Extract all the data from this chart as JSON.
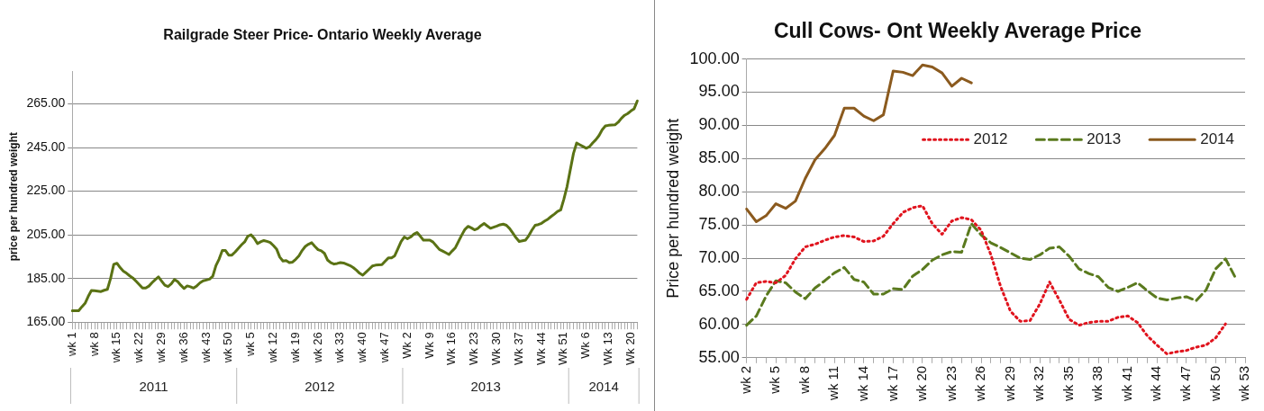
{
  "chart_data": [
    {
      "type": "line",
      "title": "Railgrade Steer Price- Ontario Weekly Average",
      "ylabel": "price per hundred weight",
      "categories": [
        "wk 1",
        null,
        null,
        null,
        null,
        null,
        null,
        "wk 8",
        null,
        null,
        null,
        null,
        null,
        null,
        "wk 15",
        null,
        null,
        null,
        null,
        null,
        null,
        "wk 22",
        null,
        null,
        null,
        null,
        null,
        null,
        "wk 29",
        null,
        null,
        null,
        null,
        null,
        null,
        "wk 36",
        null,
        null,
        null,
        null,
        null,
        null,
        "wk 43",
        null,
        null,
        null,
        null,
        null,
        null,
        "wk 50",
        null,
        null,
        null,
        null,
        null,
        null,
        "wk 5",
        null,
        null,
        null,
        null,
        null,
        null,
        "wk 12",
        null,
        null,
        null,
        null,
        null,
        null,
        "wk 19",
        null,
        null,
        null,
        null,
        null,
        null,
        "wk 26",
        null,
        null,
        null,
        null,
        null,
        null,
        "wk 33",
        null,
        null,
        null,
        null,
        null,
        null,
        "wk 40",
        null,
        null,
        null,
        null,
        null,
        null,
        "wk 47",
        null,
        null,
        null,
        null,
        null,
        null,
        "Wk 2",
        null,
        null,
        null,
        null,
        null,
        null,
        "Wk 9",
        null,
        null,
        null,
        null,
        null,
        null,
        "Wk 16",
        null,
        null,
        null,
        null,
        null,
        null,
        "Wk 23",
        null,
        null,
        null,
        null,
        null,
        null,
        "Wk 30",
        null,
        null,
        null,
        null,
        null,
        null,
        "Wk 37",
        null,
        null,
        null,
        null,
        null,
        null,
        "Wk 44",
        null,
        null,
        null,
        null,
        null,
        null,
        "Wk 51",
        null,
        null,
        null,
        null,
        null,
        null,
        "Wk 6",
        null,
        null,
        null,
        null,
        null,
        null,
        "Wk 13",
        null,
        null,
        null,
        null,
        null,
        null,
        "Wk 20",
        null,
        null
      ],
      "values": [
        170.2,
        170.2,
        170.2,
        172,
        173.6,
        176.8,
        179.5,
        179.4,
        179.2,
        179,
        179.6,
        180,
        185,
        191.5,
        192,
        190,
        188.4,
        187.4,
        186.2,
        185.2,
        183.7,
        182.2,
        180.6,
        180.6,
        181.5,
        183.1,
        184.5,
        185.7,
        183.8,
        181.9,
        181.3,
        182.5,
        184.5,
        183.6,
        181.9,
        180.4,
        181.6,
        181.2,
        180.6,
        181.6,
        183,
        183.9,
        184.3,
        184.7,
        186,
        190.9,
        193.9,
        197.8,
        197.8,
        195.7,
        195.7,
        197.1,
        198.8,
        200.4,
        201.8,
        204.4,
        205,
        203.4,
        201,
        201.8,
        202.4,
        202,
        201.5,
        200.1,
        198.5,
        194.8,
        193,
        193.2,
        192.3,
        192.5,
        193.8,
        195.4,
        197.8,
        199.7,
        200.7,
        201.4,
        199.7,
        198.2,
        197.7,
        196.5,
        193.4,
        192.2,
        191.6,
        191.9,
        192.3,
        192.1,
        191.5,
        190.9,
        190,
        188.8,
        187.4,
        186.5,
        187.9,
        189.3,
        190.7,
        191.1,
        191.2,
        191.3,
        192.9,
        194.4,
        194.4,
        195.4,
        198.6,
        201.9,
        204,
        203.2,
        204,
        205.3,
        206.1,
        204.4,
        202.6,
        202.6,
        202.6,
        201.7,
        200,
        198.3,
        197.6,
        196.8,
        196,
        197.6,
        199.1,
        202,
        204.9,
        207.5,
        208.9,
        208.2,
        207.3,
        207.9,
        209.2,
        210.2,
        209.1,
        208,
        208.5,
        209,
        209.6,
        209.9,
        209.4,
        207.9,
        205.8,
        203.7,
        202,
        202.3,
        202.6,
        204.6,
        207.2,
        209.4,
        209.7,
        210.3,
        211.3,
        212.2,
        213.4,
        214.5,
        215.7,
        216.4,
        221.4,
        227.2,
        234.8,
        242.3,
        247.1,
        246.3,
        245.5,
        244.7,
        245.4,
        247.1,
        248.6,
        250.5,
        253.2,
        254.9,
        255.2,
        255.3,
        255.4,
        256.6,
        258.4,
        259.8,
        260.6,
        261.8,
        262.8,
        266.4
      ],
      "color": "#5a7214",
      "ylim": [
        165,
        280
      ],
      "yticks": [
        {
          "value": 165,
          "label": "165.00"
        },
        {
          "value": 185,
          "label": "185.00"
        },
        {
          "value": 205,
          "label": "205.00"
        },
        {
          "value": 225,
          "label": "225.00"
        },
        {
          "value": 245,
          "label": "245.00"
        },
        {
          "value": 265,
          "label": "265.00"
        }
      ],
      "grid": "y",
      "annotations": [
        "2011",
        "2012",
        "2013",
        "2014"
      ]
    },
    {
      "type": "line",
      "title": "Cull Cows- Ont Weekly Average Price",
      "ylabel": "Price per hundred weight",
      "categories": [
        "wk 2",
        null,
        null,
        "wk 5",
        null,
        null,
        "wk 8",
        null,
        null,
        "wk 11",
        null,
        null,
        "wk 14",
        null,
        null,
        "wk 17",
        null,
        null,
        "wk 20",
        null,
        null,
        "wk 23",
        null,
        null,
        "wk 26",
        null,
        null,
        "wk 29",
        null,
        null,
        "wk 32",
        null,
        null,
        "wk 35",
        null,
        null,
        "wk 38",
        null,
        null,
        "wk 41",
        null,
        null,
        "wk 44",
        null,
        null,
        "wk 47",
        null,
        null,
        "wk 50",
        null,
        null,
        "wk 53"
      ],
      "series": [
        {
          "name": "2012",
          "color": "#e0141e",
          "line_style": "dotted",
          "values": [
            63.8,
            66.3,
            66.5,
            66.3,
            67.4,
            69.9,
            71.7,
            72.1,
            72.7,
            73.2,
            73.4,
            73.2,
            72.5,
            72.6,
            73.3,
            75.2,
            76.9,
            77.6,
            77.9,
            75.2,
            73.6,
            75.6,
            76.1,
            75.8,
            74.2,
            70.5,
            65.7,
            62,
            60.5,
            60.6,
            63.1,
            66.4,
            63.7,
            60.8,
            59.9,
            60.3,
            60.5,
            60.5,
            61.1,
            61.3,
            60.3,
            58.3,
            56.9,
            55.6,
            55.9,
            56.1,
            56.6,
            56.9,
            58,
            60.1,
            null,
            null
          ]
        },
        {
          "name": "2013",
          "color": "#5a7a1e",
          "line_style": "dashed",
          "values": [
            59.9,
            61.3,
            64.3,
            66.6,
            66.3,
            64.9,
            63.9,
            65.5,
            66.6,
            67.8,
            68.6,
            66.8,
            66.4,
            64.6,
            64.6,
            65.4,
            65.3,
            67.3,
            68.3,
            69.7,
            70.5,
            71,
            70.9,
            75.2,
            73.5,
            72.3,
            71.6,
            70.8,
            70,
            69.8,
            70.5,
            71.5,
            71.7,
            70.3,
            68.4,
            67.7,
            67.2,
            65.6,
            65,
            65.6,
            66.3,
            65.1,
            64,
            63.7,
            64,
            64.2,
            63.6,
            65.2,
            68.4,
            69.9,
            67.1,
            null
          ]
        },
        {
          "name": "2014",
          "color": "#8b5a1e",
          "line_style": "solid",
          "values": [
            77.4,
            75.5,
            76.4,
            78.2,
            77.5,
            78.6,
            82,
            84.8,
            86.5,
            88.5,
            92.6,
            92.6,
            91.4,
            90.7,
            91.6,
            98.2,
            98,
            97.5,
            99.1,
            98.8,
            97.9,
            95.9,
            97.1,
            96.4,
            null,
            null,
            null,
            null,
            null,
            null,
            null,
            null,
            null,
            null,
            null,
            null,
            null,
            null,
            null,
            null,
            null,
            null,
            null,
            null,
            null,
            null,
            null,
            null,
            null,
            null,
            null,
            null
          ]
        }
      ],
      "ylim": [
        55,
        100
      ],
      "yticks": [
        {
          "value": 55,
          "label": "55.00"
        },
        {
          "value": 60,
          "label": "60.00"
        },
        {
          "value": 65,
          "label": "65.00"
        },
        {
          "value": 70,
          "label": "70.00"
        },
        {
          "value": 75,
          "label": "75.00"
        },
        {
          "value": 80,
          "label": "80.00"
        },
        {
          "value": 85,
          "label": "85.00"
        },
        {
          "value": 90,
          "label": "90.00"
        },
        {
          "value": 95,
          "label": "95.00"
        },
        {
          "value": 100,
          "label": "100.00"
        }
      ],
      "grid": "y",
      "legend": "top right"
    }
  ]
}
